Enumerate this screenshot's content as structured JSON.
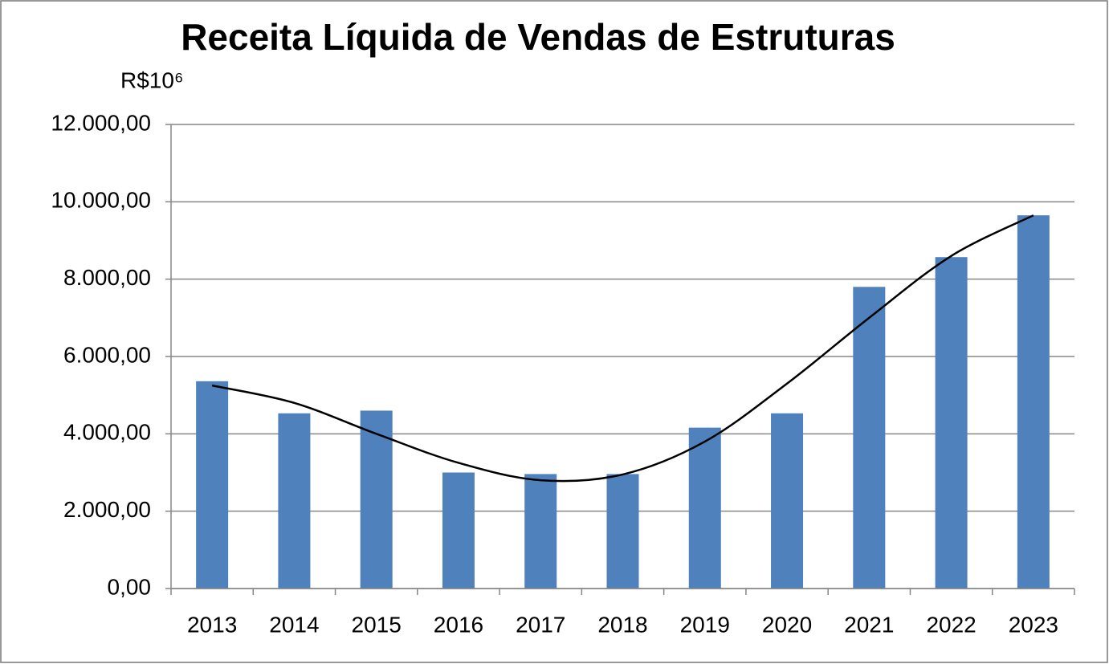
{
  "chart_data": {
    "type": "bar",
    "title": "Receita Líquida de Vendas de Estruturas",
    "unit_label": "R$10⁶",
    "categories": [
      "2013",
      "2014",
      "2015",
      "2016",
      "2017",
      "2018",
      "2019",
      "2020",
      "2021",
      "2022",
      "2023"
    ],
    "values": [
      5360,
      4530,
      4600,
      3000,
      2960,
      2960,
      4160,
      4530,
      7800,
      8570,
      9650
    ],
    "color": "#4f81bd",
    "trendline": {
      "color": "#000000",
      "values": [
        5250,
        4800,
        4000,
        3250,
        2800,
        2950,
        3800,
        5300,
        7000,
        8600,
        9650
      ]
    },
    "ylim": [
      0,
      12000
    ],
    "yticks": [
      {
        "value": 0,
        "label": "0,00"
      },
      {
        "value": 2000,
        "label": "2.000,00"
      },
      {
        "value": 4000,
        "label": "4.000,00"
      },
      {
        "value": 6000,
        "label": "6.000,00"
      },
      {
        "value": 8000,
        "label": "8.000,00"
      },
      {
        "value": 10000,
        "label": "10.000,00"
      },
      {
        "value": 12000,
        "label": "12.000,00"
      }
    ],
    "grid": true
  }
}
